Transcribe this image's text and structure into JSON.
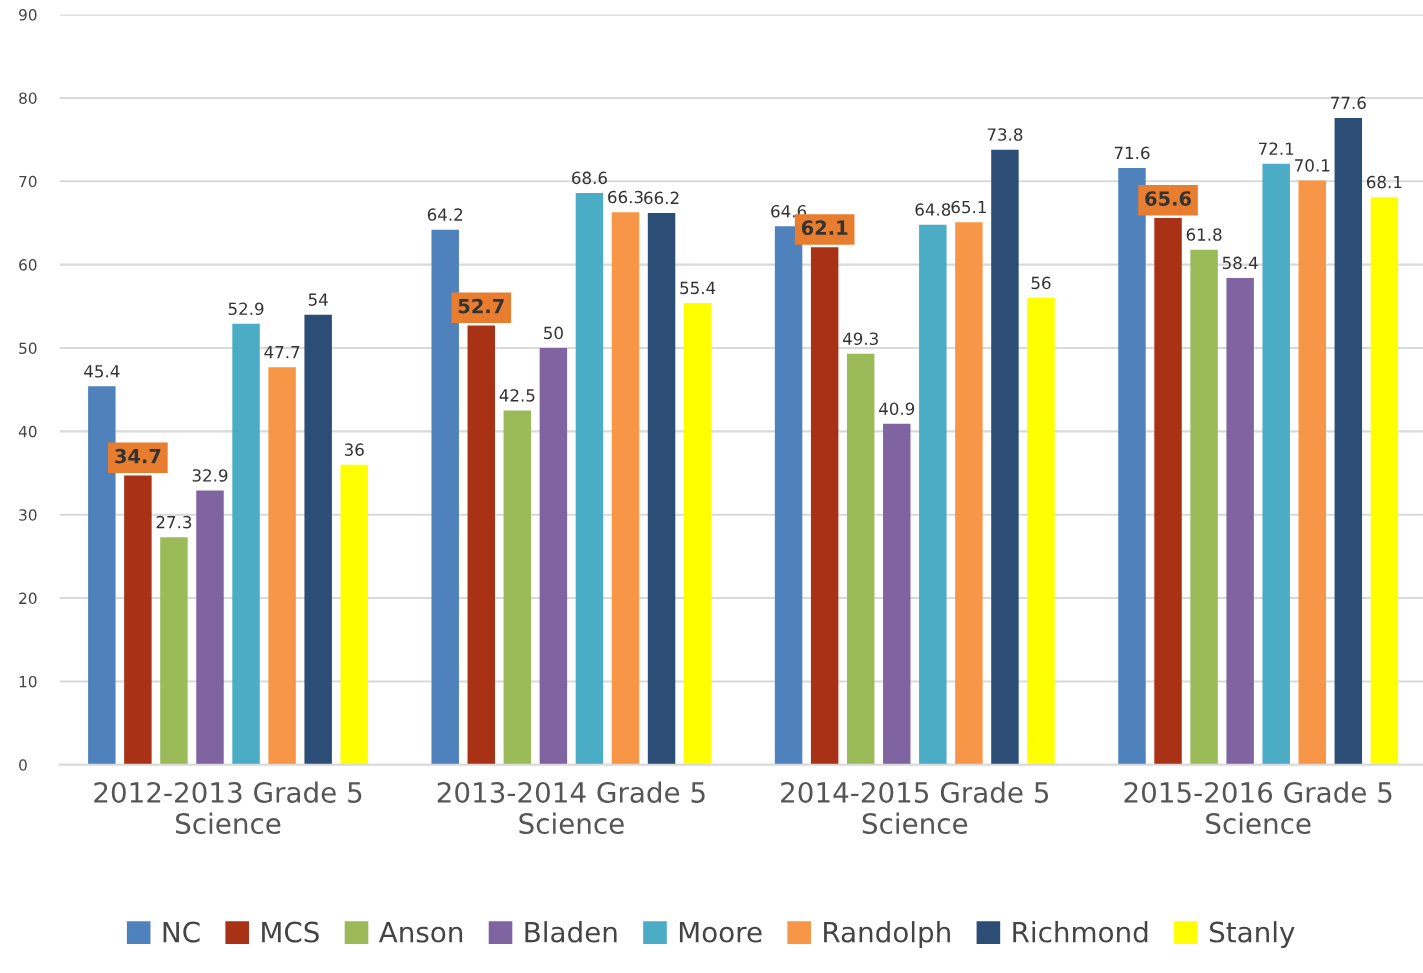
{
  "chart_data": {
    "type": "bar",
    "categories": [
      "2012-2013 Grade 5 Science",
      "2013-2014 Grade 5 Science",
      "2014-2015 Grade 5 Science",
      "2015-2016 Grade 5 Science"
    ],
    "series": [
      {
        "name": "NC",
        "color": "#4f81bd",
        "values": [
          45.4,
          64.2,
          64.6,
          71.6
        ]
      },
      {
        "name": "MCS",
        "color": "#a93116",
        "values": [
          34.7,
          52.7,
          62.1,
          65.6
        ]
      },
      {
        "name": "Anson",
        "color": "#9bbb59",
        "values": [
          27.3,
          42.5,
          49.3,
          61.8
        ]
      },
      {
        "name": "Bladen",
        "color": "#8064a2",
        "values": [
          32.9,
          50,
          40.9,
          58.4
        ]
      },
      {
        "name": "Moore",
        "color": "#4bacc6",
        "values": [
          52.9,
          68.6,
          64.8,
          72.1
        ]
      },
      {
        "name": "Randolph",
        "color": "#f79646",
        "values": [
          47.7,
          66.3,
          65.1,
          70.1
        ]
      },
      {
        "name": "Richmond",
        "color": "#2c4d75",
        "values": [
          54,
          66.2,
          73.8,
          77.6
        ]
      },
      {
        "name": "Stanly",
        "color": "#ffff00",
        "values": [
          36,
          55.4,
          56,
          68.1
        ]
      }
    ],
    "ylim": [
      0,
      90
    ],
    "yticks": [
      0,
      10,
      20,
      30,
      40,
      50,
      60,
      70,
      80,
      90
    ],
    "grid": "y",
    "legend": "bottom",
    "data_labels": true
  }
}
